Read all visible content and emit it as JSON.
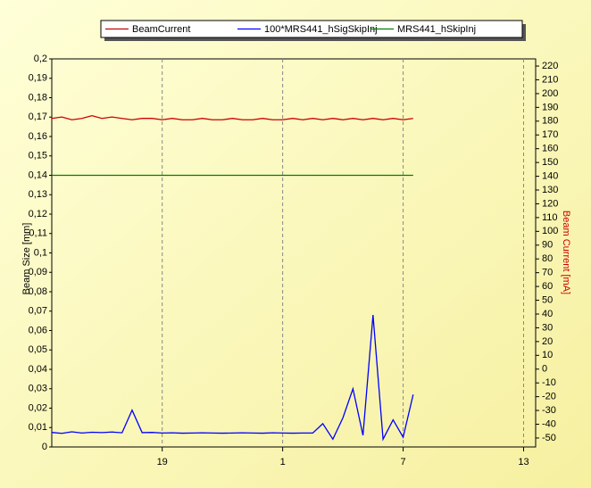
{
  "chart_data": {
    "type": "line",
    "y_label": "Beam Size [mm]",
    "y2_label": "Beam Current [mA]",
    "x": [
      0,
      0.5,
      1,
      1.5,
      2,
      2.5,
      3,
      3.5,
      4,
      4.5,
      5,
      5.5,
      6,
      6.5,
      7,
      7.5,
      8,
      8.5,
      9,
      9.5,
      10,
      10.5,
      11,
      11.5,
      12,
      12.5,
      13,
      13.5,
      14,
      14.5,
      15,
      15.5,
      16,
      16.5,
      17,
      17.5,
      18
    ],
    "xlim": [
      0,
      24.1
    ],
    "xticks": [
      {
        "value": 5.5,
        "label": "19"
      },
      {
        "value": 11.5,
        "label": "1"
      },
      {
        "value": 17.5,
        "label": "7"
      },
      {
        "value": 23.5,
        "label": "13"
      }
    ],
    "ylim": [
      0,
      0.2
    ],
    "yticks": [
      0,
      {
        "value": 0.01,
        "label": "0,01"
      },
      {
        "value": 0.02,
        "label": "0,02"
      },
      {
        "value": 0.03,
        "label": "0,03"
      },
      {
        "value": 0.04,
        "label": "0,04"
      },
      {
        "value": 0.05,
        "label": "0,05"
      },
      {
        "value": 0.06,
        "label": "0,06"
      },
      {
        "value": 0.07,
        "label": "0,07"
      },
      {
        "value": 0.08,
        "label": "0,08"
      },
      {
        "value": 0.09,
        "label": "0,09"
      },
      {
        "value": 0.1,
        "label": "0,1"
      },
      {
        "value": 0.11,
        "label": "0,11"
      },
      {
        "value": 0.12,
        "label": "0,12"
      },
      {
        "value": 0.13,
        "label": "0,13"
      },
      {
        "value": 0.14,
        "label": "0,14"
      },
      {
        "value": 0.15,
        "label": "0,15"
      },
      {
        "value": 0.16,
        "label": "0,16"
      },
      {
        "value": 0.17,
        "label": "0,17"
      },
      {
        "value": 0.18,
        "label": "0,18"
      },
      {
        "value": 0.19,
        "label": "0,19"
      },
      {
        "value": 0.2,
        "label": "0,2"
      }
    ],
    "y2lim": [
      -56.5,
      225.2
    ],
    "y2ticks": [
      -50,
      -40,
      -30,
      -20,
      -10,
      0,
      10,
      20,
      30,
      40,
      50,
      60,
      70,
      80,
      90,
      100,
      110,
      120,
      130,
      140,
      150,
      160,
      170,
      180,
      190,
      200,
      210,
      220
    ],
    "grid": "x",
    "legend": "top",
    "series": [
      {
        "name": "BeamCurrent",
        "color": "#cc0000",
        "axis": "y2",
        "values": [
          182,
          183,
          181,
          182,
          184,
          182,
          183,
          182,
          181,
          182,
          182,
          181,
          182,
          181,
          181,
          182,
          181,
          181,
          182,
          181,
          181,
          182,
          181,
          181,
          182,
          181,
          182,
          181,
          182,
          181,
          182,
          181,
          182,
          181,
          182,
          181,
          182
        ]
      },
      {
        "name": "100*MRS441_hSigSkipInj",
        "color": "#0000ff",
        "values": [
          0.0075,
          0.007,
          0.0078,
          0.0072,
          0.0076,
          0.0074,
          0.0077,
          0.0073,
          0.019,
          0.0074,
          0.0075,
          0.0072,
          0.0073,
          0.0071,
          0.0072,
          0.0073,
          0.0072,
          0.0071,
          0.0072,
          0.0073,
          0.0072,
          0.0071,
          0.0073,
          0.0072,
          0.0071,
          0.0072,
          0.0072,
          0.012,
          0.004,
          0.015,
          0.03,
          0.006,
          0.068,
          0.004,
          0.014,
          0.005,
          0.027
        ]
      },
      {
        "name": "MRS441_hSkipInj",
        "color": "#008000",
        "values": [
          0.14,
          0.14,
          0.14,
          0.14,
          0.14,
          0.14,
          0.14,
          0.14,
          0.14,
          0.14,
          0.14,
          0.14,
          0.14,
          0.14,
          0.14,
          0.14,
          0.14,
          0.14,
          0.14,
          0.14,
          0.14,
          0.14,
          0.14,
          0.14,
          0.14,
          0.14,
          0.14,
          0.14,
          0.14,
          0.14,
          0.14,
          0.14,
          0.14,
          0.14,
          0.14,
          0.14,
          0.14
        ]
      }
    ]
  }
}
